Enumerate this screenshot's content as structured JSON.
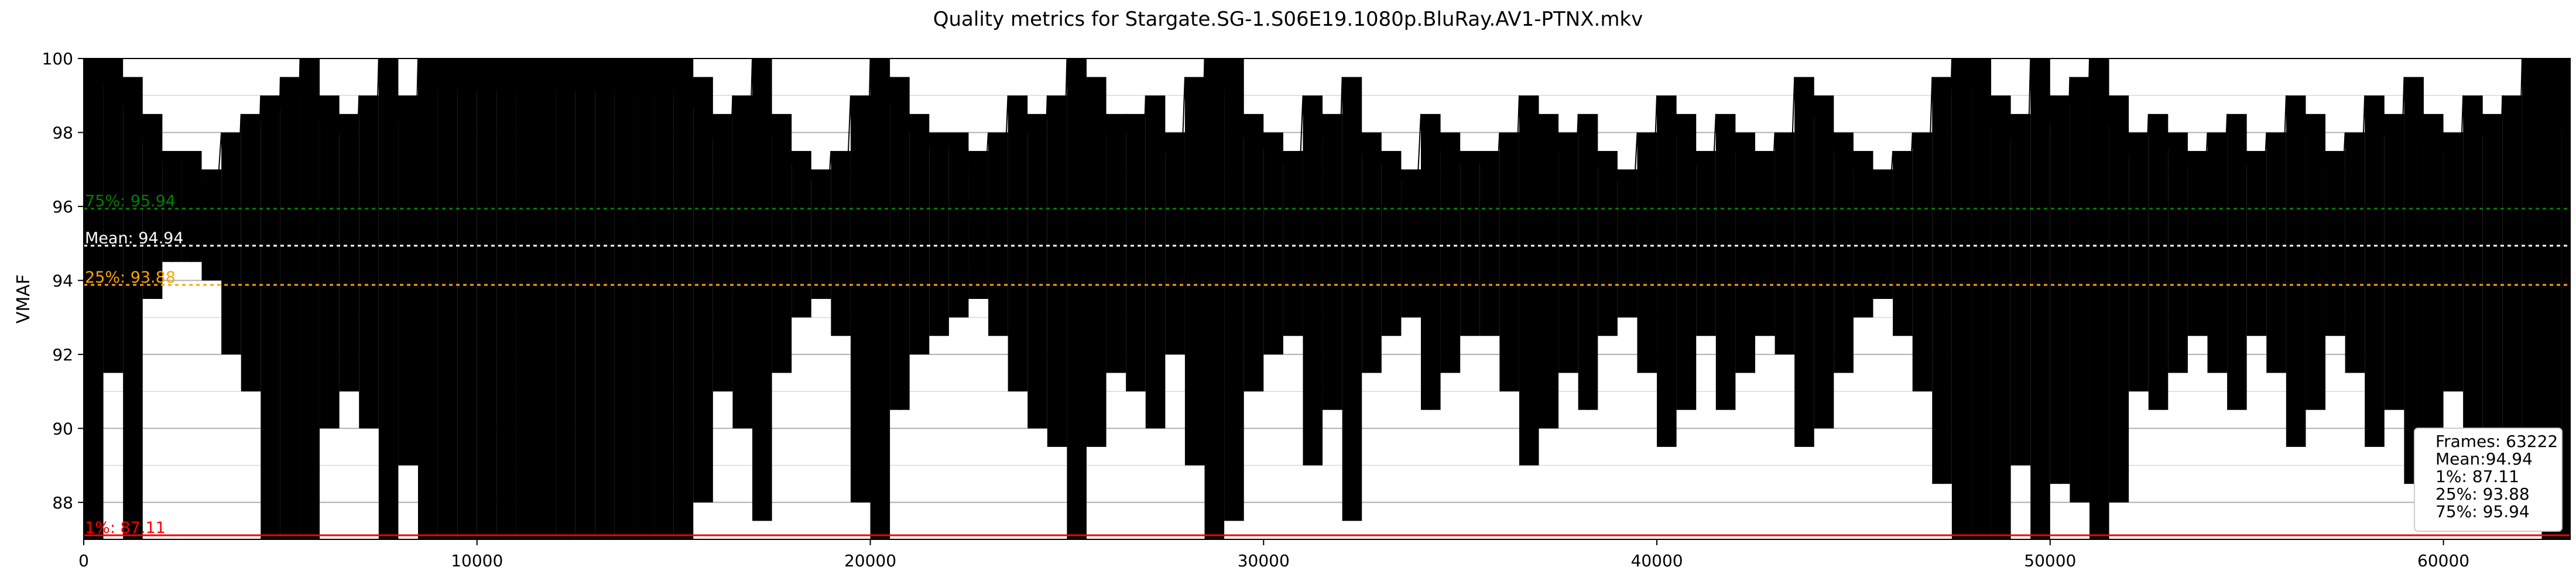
{
  "chart_data": {
    "type": "line",
    "title": "Quality metrics for Stargate.SG-1.S06E19.1080p.BluRay.AV1-PTNX.mkv",
    "xlabel": "",
    "ylabel": "VMAF",
    "xlim": [
      0,
      63222
    ],
    "ylim": [
      87,
      100
    ],
    "x_ticks": [
      0,
      10000,
      20000,
      30000,
      40000,
      50000,
      60000
    ],
    "y_ticks": [
      88,
      90,
      92,
      94,
      96,
      98,
      100
    ],
    "grid": true,
    "frames": 63222,
    "reference_lines": [
      {
        "name": "75%",
        "value": 95.94,
        "label": "75%: 95.94",
        "color": "#008000",
        "style": "dashed"
      },
      {
        "name": "Mean",
        "value": 94.94,
        "label": "Mean: 94.94",
        "color": "#ffffff",
        "style": "dashed"
      },
      {
        "name": "25%",
        "value": 93.88,
        "label": "25%: 93.88",
        "color": "#ffa500",
        "style": "dashed"
      },
      {
        "name": "1%",
        "value": 87.11,
        "label": "1%: 87.11",
        "color": "#ff0000",
        "style": "solid"
      }
    ],
    "series": [
      {
        "color": "#000000",
        "x": [
          0,
          500,
          1000,
          1500,
          2000,
          2500,
          3000,
          3500,
          4000,
          4500,
          5000,
          5500,
          6000,
          6500,
          7000,
          7500,
          8000,
          8500,
          9000,
          9500,
          10000,
          10500,
          11000,
          11500,
          12000,
          12500,
          13000,
          13500,
          14000,
          14500,
          15000,
          15500,
          16000,
          16500,
          17000,
          17500,
          18000,
          18500,
          19000,
          19500,
          20000,
          20500,
          21000,
          21500,
          22000,
          22500,
          23000,
          23500,
          24000,
          24500,
          25000,
          25500,
          26000,
          26500,
          27000,
          27500,
          28000,
          28500,
          29000,
          29500,
          30000,
          30500,
          31000,
          31500,
          32000,
          32500,
          33000,
          33500,
          34000,
          34500,
          35000,
          35500,
          36000,
          36500,
          37000,
          37500,
          38000,
          38500,
          39000,
          39500,
          40000,
          40500,
          41000,
          41500,
          42000,
          42500,
          43000,
          43500,
          44000,
          44500,
          45000,
          45500,
          46000,
          46500,
          47000,
          47500,
          48000,
          48500,
          49000,
          49500,
          50000,
          50500,
          51000,
          51500,
          52000,
          52500,
          53000,
          53500,
          54000,
          54500,
          55000,
          55500,
          56000,
          56500,
          57000,
          57500,
          58000,
          58500,
          59000,
          59500,
          60000,
          60500,
          61000,
          61500,
          62000,
          62500,
          63000
        ],
        "max": [
          100,
          100,
          99.5,
          98.5,
          97.5,
          97.5,
          97.0,
          98.0,
          98.5,
          99.0,
          99.5,
          100,
          99.0,
          98.5,
          99.0,
          100,
          99.0,
          100,
          100,
          100,
          100,
          100,
          100,
          100,
          100,
          100,
          100,
          100,
          100,
          100,
          100,
          99.5,
          98.5,
          99.0,
          100,
          98.5,
          97.5,
          97.0,
          97.5,
          99.0,
          100,
          99.5,
          98.5,
          98.0,
          98.0,
          97.5,
          98.0,
          99.0,
          98.5,
          99.0,
          100,
          99.5,
          98.5,
          98.5,
          99.0,
          98.0,
          99.5,
          100,
          100,
          98.5,
          98.0,
          97.5,
          99.0,
          98.5,
          99.5,
          98.0,
          97.5,
          97.0,
          98.5,
          98.0,
          97.5,
          97.5,
          98.0,
          99.0,
          98.5,
          98.0,
          98.5,
          97.5,
          97.0,
          98.0,
          99.0,
          98.5,
          97.5,
          98.5,
          98.0,
          97.5,
          98.0,
          99.5,
          99.0,
          98.0,
          97.5,
          97.0,
          97.5,
          98.0,
          99.5,
          100,
          100,
          99.0,
          98.5,
          100,
          99.0,
          99.5,
          100,
          99.0,
          98.0,
          98.5,
          98.0,
          97.5,
          98.0,
          98.5,
          97.5,
          98.0,
          99.0,
          98.5,
          97.5,
          98.0,
          99.0,
          98.5,
          99.5,
          98.5,
          98.0,
          99.0,
          98.5,
          99.0,
          100,
          100,
          100,
          99.5
        ],
        "min": [
          87.0,
          91.5,
          87.0,
          93.5,
          94.5,
          94.5,
          94.0,
          92.0,
          91.0,
          87.0,
          87.0,
          87.0,
          90.0,
          91.0,
          90.0,
          87.0,
          89.0,
          87.0,
          87.0,
          87.0,
          87.0,
          87.0,
          87.0,
          87.0,
          87.0,
          87.0,
          87.0,
          87.0,
          87.0,
          87.0,
          87.0,
          88.0,
          91.0,
          90.0,
          87.5,
          91.5,
          93.0,
          93.5,
          92.5,
          88.0,
          87.0,
          90.5,
          92.0,
          92.5,
          93.0,
          93.5,
          92.5,
          91.0,
          90.0,
          89.5,
          87.0,
          89.5,
          91.5,
          91.0,
          90.0,
          92.0,
          89.0,
          87.0,
          87.5,
          91.0,
          92.0,
          92.5,
          89.0,
          90.5,
          87.5,
          91.5,
          92.5,
          93.0,
          90.5,
          91.5,
          92.5,
          92.5,
          91.0,
          89.0,
          90.0,
          91.5,
          90.5,
          92.5,
          93.0,
          91.5,
          89.5,
          90.5,
          92.5,
          90.5,
          91.5,
          92.5,
          92.0,
          89.5,
          90.0,
          91.5,
          93.0,
          93.5,
          92.5,
          91.0,
          88.5,
          87.0,
          87.0,
          87.0,
          89.0,
          87.0,
          88.5,
          88.0,
          87.0,
          88.0,
          91.0,
          90.5,
          91.5,
          92.5,
          91.5,
          90.5,
          92.5,
          91.5,
          89.5,
          90.5,
          92.5,
          91.5,
          89.5,
          90.5,
          88.5,
          90.0,
          91.0,
          89.5,
          90.0,
          89.0,
          87.5,
          87.0,
          87.0,
          88.0
        ]
      }
    ],
    "stats_box": {
      "frames": "Frames: 63222",
      "mean": "Mean:94.94",
      "p1": "1%: 87.11",
      "p25": "25%: 93.88",
      "p75": "75%: 95.94"
    }
  }
}
